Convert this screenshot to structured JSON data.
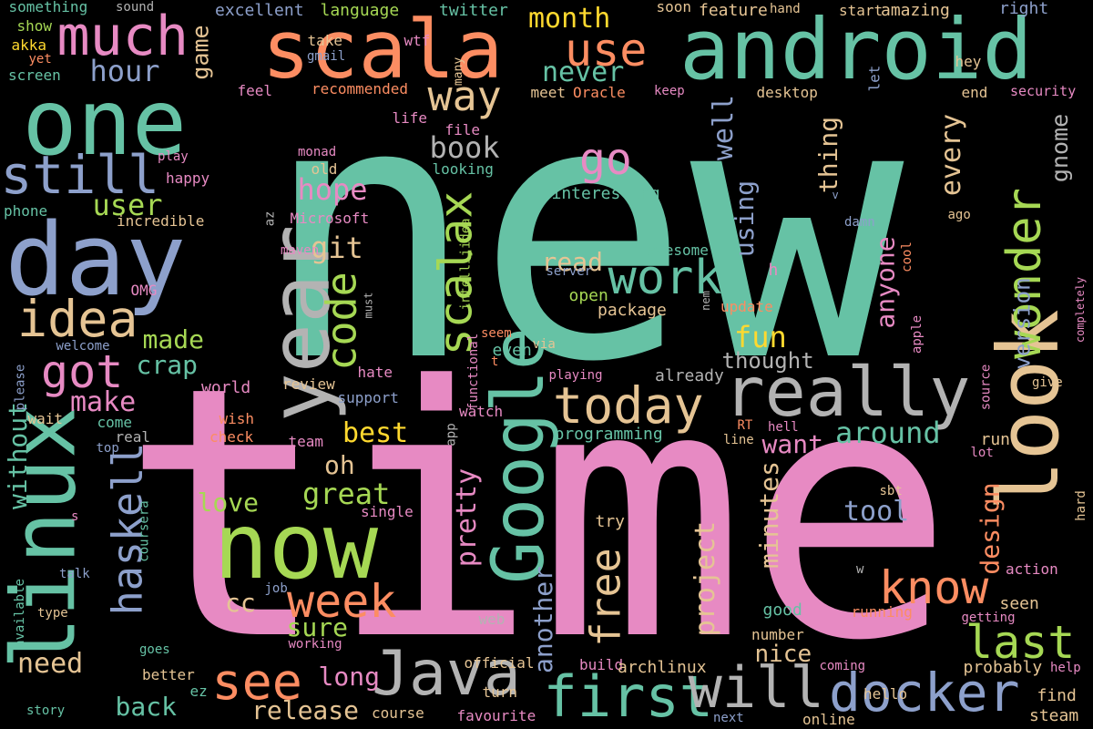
{
  "palette": [
    "#66c2a5",
    "#fc8d62",
    "#8da0cb",
    "#e78ac3",
    "#a6d854",
    "#ffd92f",
    "#e5c494",
    "#b3b3b3"
  ],
  "words": [
    {
      "text": "new",
      "color": "#66c2a5",
      "rotated": false
    },
    {
      "text": "time",
      "color": "#e78ac3",
      "rotated": false
    },
    {
      "text": "scala",
      "color": "#fc8d62",
      "rotated": false
    },
    {
      "text": "android",
      "color": "#66c2a5",
      "rotated": false
    },
    {
      "text": "one",
      "color": "#66c2a5",
      "rotated": false
    },
    {
      "text": "day",
      "color": "#8da0cb",
      "rotated": false
    },
    {
      "text": "year",
      "color": "#b3b3b3",
      "rotated": true
    },
    {
      "text": "look",
      "color": "#e5c494",
      "rotated": true
    },
    {
      "text": "now",
      "color": "#a6d854",
      "rotated": false
    },
    {
      "text": "linux",
      "color": "#66c2a5",
      "rotated": true
    },
    {
      "text": "Google",
      "color": "#66c2a5",
      "rotated": true
    },
    {
      "text": "really",
      "color": "#b3b3b3",
      "rotated": false
    },
    {
      "text": "Java",
      "color": "#b3b3b3",
      "rotated": false
    },
    {
      "text": "first",
      "color": "#66c2a5",
      "rotated": false
    },
    {
      "text": "will",
      "color": "#b3b3b3",
      "rotated": false
    },
    {
      "text": "docker",
      "color": "#8da0cb",
      "rotated": false
    },
    {
      "text": "today",
      "color": "#e5c494",
      "rotated": false
    },
    {
      "text": "still",
      "color": "#8da0cb",
      "rotated": false
    },
    {
      "text": "much",
      "color": "#e78ac3",
      "rotated": false
    },
    {
      "text": "idea",
      "color": "#e5c494",
      "rotated": false
    },
    {
      "text": "got",
      "color": "#e78ac3",
      "rotated": false
    },
    {
      "text": "see",
      "color": "#fc8d62",
      "rotated": false
    },
    {
      "text": "week",
      "color": "#fc8d62",
      "rotated": false
    },
    {
      "text": "work",
      "color": "#66c2a5",
      "rotated": false
    },
    {
      "text": "use",
      "color": "#fc8d62",
      "rotated": false
    },
    {
      "text": "way",
      "color": "#e5c494",
      "rotated": false
    },
    {
      "text": "go",
      "color": "#e78ac3",
      "rotated": false
    },
    {
      "text": "know",
      "color": "#fc8d62",
      "rotated": false
    },
    {
      "text": "last",
      "color": "#a6d854",
      "rotated": false
    },
    {
      "text": "wonder",
      "color": "#a6d854",
      "rotated": true
    },
    {
      "text": "scalax",
      "color": "#a6d854",
      "rotated": true
    },
    {
      "text": "code",
      "color": "#a6d854",
      "rotated": true
    },
    {
      "text": "haskell",
      "color": "#8da0cb",
      "rotated": true
    },
    {
      "text": "free",
      "color": "#e5c494",
      "rotated": true
    },
    {
      "text": "without",
      "color": "#66c2a5",
      "rotated": true
    },
    {
      "text": "book",
      "color": "#b3b3b3",
      "rotated": false
    },
    {
      "text": "hope",
      "color": "#e78ac3",
      "rotated": false
    },
    {
      "text": "git",
      "color": "#e5c494",
      "rotated": false
    },
    {
      "text": "user",
      "color": "#a6d854",
      "rotated": false
    },
    {
      "text": "hour",
      "color": "#8da0cb",
      "rotated": false
    },
    {
      "text": "month",
      "color": "#ffd92f",
      "rotated": false
    },
    {
      "text": "never",
      "color": "#66c2a5",
      "rotated": false
    },
    {
      "text": "game",
      "color": "#e5c494",
      "rotated": true
    },
    {
      "text": "made",
      "color": "#a6d854",
      "rotated": false
    },
    {
      "text": "crap",
      "color": "#66c2a5",
      "rotated": false
    },
    {
      "text": "make",
      "color": "#e78ac3",
      "rotated": false
    },
    {
      "text": "back",
      "color": "#66c2a5",
      "rotated": false
    },
    {
      "text": "need",
      "color": "#e5c494",
      "rotated": false
    },
    {
      "text": "long",
      "color": "#e78ac3",
      "rotated": false
    },
    {
      "text": "release",
      "color": "#e5c494",
      "rotated": false
    },
    {
      "text": "cc",
      "color": "#e5c494",
      "rotated": false
    },
    {
      "text": "sure",
      "color": "#a6d854",
      "rotated": false
    },
    {
      "text": "great",
      "color": "#a6d854",
      "rotated": false
    },
    {
      "text": "love",
      "color": "#a6d854",
      "rotated": false
    },
    {
      "text": "oh",
      "color": "#e5c494",
      "rotated": false
    },
    {
      "text": "best",
      "color": "#ffd92f",
      "rotated": false
    },
    {
      "text": "pretty",
      "color": "#e78ac3",
      "rotated": true
    },
    {
      "text": "another",
      "color": "#8da0cb",
      "rotated": true
    },
    {
      "text": "project",
      "color": "#e5c494",
      "rotated": true
    },
    {
      "text": "minutes",
      "color": "#e5c494",
      "rotated": true
    },
    {
      "text": "nice",
      "color": "#e5c494",
      "rotated": false
    },
    {
      "text": "want",
      "color": "#e78ac3",
      "rotated": false
    },
    {
      "text": "around",
      "color": "#66c2a5",
      "rotated": false
    },
    {
      "text": "tool",
      "color": "#8da0cb",
      "rotated": false
    },
    {
      "text": "design",
      "color": "#fc8d62",
      "rotated": true
    },
    {
      "text": "fun",
      "color": "#ffd92f",
      "rotated": false
    },
    {
      "text": "read",
      "color": "#e5c494",
      "rotated": false
    },
    {
      "text": "thought",
      "color": "#b3b3b3",
      "rotated": false
    },
    {
      "text": "using",
      "color": "#8da0cb",
      "rotated": true
    },
    {
      "text": "well",
      "color": "#8da0cb",
      "rotated": true
    },
    {
      "text": "thing",
      "color": "#e5c494",
      "rotated": true
    },
    {
      "text": "every",
      "color": "#e5c494",
      "rotated": true
    },
    {
      "text": "gnome",
      "color": "#b3b3b3",
      "rotated": true
    },
    {
      "text": "anyone",
      "color": "#e78ac3",
      "rotated": true
    },
    {
      "text": "version",
      "color": "#8da0cb",
      "rotated": true
    },
    {
      "text": "excellent",
      "color": "#8da0cb",
      "rotated": false
    },
    {
      "text": "language",
      "color": "#a6d854",
      "rotated": false
    },
    {
      "text": "twitter",
      "color": "#66c2a5",
      "rotated": false
    },
    {
      "text": "feature",
      "color": "#e5c494",
      "rotated": false
    },
    {
      "text": "amazing",
      "color": "#e5c494",
      "rotated": false
    },
    {
      "text": "hand",
      "color": "#e5c494",
      "rotated": false
    },
    {
      "text": "right",
      "color": "#8da0cb",
      "rotated": false
    },
    {
      "text": "something",
      "color": "#66c2a5",
      "rotated": false
    },
    {
      "text": "sound",
      "color": "#b3b3b3",
      "rotated": false
    },
    {
      "text": "show",
      "color": "#a6d854",
      "rotated": false
    },
    {
      "text": "akka",
      "color": "#ffd92f",
      "rotated": false
    },
    {
      "text": "yet",
      "color": "#fc8d62",
      "rotated": false
    },
    {
      "text": "screen",
      "color": "#66c2a5",
      "rotated": false
    },
    {
      "text": "soon",
      "color": "#e5c494",
      "rotated": false
    },
    {
      "text": "start",
      "color": "#e5c494",
      "rotated": false
    },
    {
      "text": "take",
      "color": "#e5c494",
      "rotated": false
    },
    {
      "text": "gmail",
      "color": "#8da0cb",
      "rotated": false
    },
    {
      "text": "wtf",
      "color": "#e78ac3",
      "rotated": false
    },
    {
      "text": "many",
      "color": "#e5c494",
      "rotated": true
    },
    {
      "text": "hey",
      "color": "#e5c494",
      "rotated": false
    },
    {
      "text": "feel",
      "color": "#e78ac3",
      "rotated": false
    },
    {
      "text": "recommended",
      "color": "#fc8d62",
      "rotated": false
    },
    {
      "text": "meet",
      "color": "#e5c494",
      "rotated": false
    },
    {
      "text": "Oracle",
      "color": "#fc8d62",
      "rotated": false
    },
    {
      "text": "keep",
      "color": "#e78ac3",
      "rotated": false
    },
    {
      "text": "desktop",
      "color": "#e5c494",
      "rotated": false
    },
    {
      "text": "let",
      "color": "#8da0cb",
      "rotated": true
    },
    {
      "text": "end",
      "color": "#e5c494",
      "rotated": false
    },
    {
      "text": "security",
      "color": "#e78ac3",
      "rotated": false
    },
    {
      "text": "life",
      "color": "#e78ac3",
      "rotated": false
    },
    {
      "text": "file",
      "color": "#e78ac3",
      "rotated": false
    },
    {
      "text": "monad",
      "color": "#e78ac3",
      "rotated": false
    },
    {
      "text": "play",
      "color": "#e78ac3",
      "rotated": false
    },
    {
      "text": "happy",
      "color": "#e78ac3",
      "rotated": false
    },
    {
      "text": "old",
      "color": "#e5c494",
      "rotated": false
    },
    {
      "text": "looking",
      "color": "#66c2a5",
      "rotated": false
    },
    {
      "text": "interesting",
      "color": "#66c2a5",
      "rotated": false
    },
    {
      "text": "phone",
      "color": "#66c2a5",
      "rotated": false
    },
    {
      "text": "incredible",
      "color": "#e5c494",
      "rotated": false
    },
    {
      "text": "Microsoft",
      "color": "#e78ac3",
      "rotated": false
    },
    {
      "text": "az",
      "color": "#b3b3b3",
      "rotated": true
    },
    {
      "text": "maven",
      "color": "#e78ac3",
      "rotated": false
    },
    {
      "text": "intellijidea",
      "color": "#a6d854",
      "rotated": true
    },
    {
      "text": "awesome",
      "color": "#66c2a5",
      "rotated": false
    },
    {
      "text": "server",
      "color": "#8da0cb",
      "rotated": false
    },
    {
      "text": "open",
      "color": "#a6d854",
      "rotated": false
    },
    {
      "text": "package",
      "color": "#e5c494",
      "rotated": false
    },
    {
      "text": "h",
      "color": "#e78ac3",
      "rotated": false
    },
    {
      "text": "nem",
      "color": "#b3b3b3",
      "rotated": true
    },
    {
      "text": "update",
      "color": "#fc8d62",
      "rotated": false
    },
    {
      "text": "v",
      "color": "#8da0cb",
      "rotated": false
    },
    {
      "text": "ago",
      "color": "#e5c494",
      "rotated": false
    },
    {
      "text": "damn",
      "color": "#8da0cb",
      "rotated": false
    },
    {
      "text": "cool",
      "color": "#fc8d62",
      "rotated": true
    },
    {
      "text": "apple",
      "color": "#e78ac3",
      "rotated": true
    },
    {
      "text": "completely",
      "color": "#e78ac3",
      "rotated": true
    },
    {
      "text": "OMG",
      "color": "#e78ac3",
      "rotated": false
    },
    {
      "text": "must",
      "color": "#b3b3b3",
      "rotated": true
    },
    {
      "text": "seem",
      "color": "#fc8d62",
      "rotated": false
    },
    {
      "text": "welcome",
      "color": "#8da0cb",
      "rotated": false
    },
    {
      "text": "please",
      "color": "#8da0cb",
      "rotated": true
    },
    {
      "text": "functional",
      "color": "#e78ac3",
      "rotated": true
    },
    {
      "text": "t",
      "color": "#fc8d62",
      "rotated": false
    },
    {
      "text": "even",
      "color": "#66c2a5",
      "rotated": false
    },
    {
      "text": "via",
      "color": "#e5c494",
      "rotated": false
    },
    {
      "text": "playing",
      "color": "#e78ac3",
      "rotated": false
    },
    {
      "text": "already",
      "color": "#b3b3b3",
      "rotated": false
    },
    {
      "text": "give",
      "color": "#e5c494",
      "rotated": false
    },
    {
      "text": "source",
      "color": "#e78ac3",
      "rotated": true
    },
    {
      "text": "hate",
      "color": "#e78ac3",
      "rotated": false
    },
    {
      "text": "review",
      "color": "#e5c494",
      "rotated": false
    },
    {
      "text": "support",
      "color": "#8da0cb",
      "rotated": false
    },
    {
      "text": "world",
      "color": "#e78ac3",
      "rotated": false
    },
    {
      "text": "wait",
      "color": "#e5c494",
      "rotated": false
    },
    {
      "text": "come",
      "color": "#66c2a5",
      "rotated": false
    },
    {
      "text": "wish",
      "color": "#fc8d62",
      "rotated": false
    },
    {
      "text": "check",
      "color": "#fc8d62",
      "rotated": false
    },
    {
      "text": "team",
      "color": "#e78ac3",
      "rotated": false
    },
    {
      "text": "watch",
      "color": "#e78ac3",
      "rotated": false
    },
    {
      "text": "app",
      "color": "#b3b3b3",
      "rotated": true
    },
    {
      "text": "programming",
      "color": "#66c2a5",
      "rotated": false
    },
    {
      "text": "RT",
      "color": "#fc8d62",
      "rotated": false
    },
    {
      "text": "hell",
      "color": "#e78ac3",
      "rotated": false
    },
    {
      "text": "line",
      "color": "#e5c494",
      "rotated": false
    },
    {
      "text": "run",
      "color": "#e5c494",
      "rotated": false
    },
    {
      "text": "lot",
      "color": "#e78ac3",
      "rotated": false
    },
    {
      "text": "real",
      "color": "#b3b3b3",
      "rotated": false
    },
    {
      "text": "top",
      "color": "#8da0cb",
      "rotated": false
    },
    {
      "text": "sbt",
      "color": "#e5c494",
      "rotated": false
    },
    {
      "text": "hard",
      "color": "#e5c494",
      "rotated": true
    },
    {
      "text": "single",
      "color": "#e78ac3",
      "rotated": false
    },
    {
      "text": "coursera",
      "color": "#66c2a5",
      "rotated": true
    },
    {
      "text": "s",
      "color": "#e78ac3",
      "rotated": false
    },
    {
      "text": "available",
      "color": "#66c2a5",
      "rotated": true
    },
    {
      "text": "talk",
      "color": "#8da0cb",
      "rotated": false
    },
    {
      "text": "try",
      "color": "#e5c494",
      "rotated": false
    },
    {
      "text": "seen",
      "color": "#e5c494",
      "rotated": false
    },
    {
      "text": "action",
      "color": "#e78ac3",
      "rotated": false
    },
    {
      "text": "w",
      "color": "#b3b3b3",
      "rotated": false
    },
    {
      "text": "job",
      "color": "#8da0cb",
      "rotated": false
    },
    {
      "text": "type",
      "color": "#e5c494",
      "rotated": false
    },
    {
      "text": "web",
      "color": "#b3b3b3",
      "rotated": false
    },
    {
      "text": "good",
      "color": "#66c2a5",
      "rotated": false
    },
    {
      "text": "running",
      "color": "#fc8d62",
      "rotated": false
    },
    {
      "text": "getting",
      "color": "#e78ac3",
      "rotated": false
    },
    {
      "text": "number",
      "color": "#e5c494",
      "rotated": false
    },
    {
      "text": "goes",
      "color": "#66c2a5",
      "rotated": false
    },
    {
      "text": "working",
      "color": "#e78ac3",
      "rotated": false
    },
    {
      "text": "better",
      "color": "#e5c494",
      "rotated": false
    },
    {
      "text": "ez",
      "color": "#66c2a5",
      "rotated": false
    },
    {
      "text": "official",
      "color": "#e5c494",
      "rotated": false
    },
    {
      "text": "build",
      "color": "#e78ac3",
      "rotated": false
    },
    {
      "text": "archlinux",
      "color": "#e5c494",
      "rotated": false
    },
    {
      "text": "coming",
      "color": "#e78ac3",
      "rotated": false
    },
    {
      "text": "probably",
      "color": "#e5c494",
      "rotated": false
    },
    {
      "text": "help",
      "color": "#e78ac3",
      "rotated": false
    },
    {
      "text": "turn",
      "color": "#e5c494",
      "rotated": false
    },
    {
      "text": "course",
      "color": "#e5c494",
      "rotated": false
    },
    {
      "text": "hello",
      "color": "#e5c494",
      "rotated": false
    },
    {
      "text": "find",
      "color": "#e5c494",
      "rotated": false
    },
    {
      "text": "story",
      "color": "#66c2a5",
      "rotated": false
    },
    {
      "text": "favourite",
      "color": "#e78ac3",
      "rotated": false
    },
    {
      "text": "next",
      "color": "#8da0cb",
      "rotated": false
    },
    {
      "text": "online",
      "color": "#e5c494",
      "rotated": false
    },
    {
      "text": "steam",
      "color": "#e5c494",
      "rotated": false
    }
  ]
}
